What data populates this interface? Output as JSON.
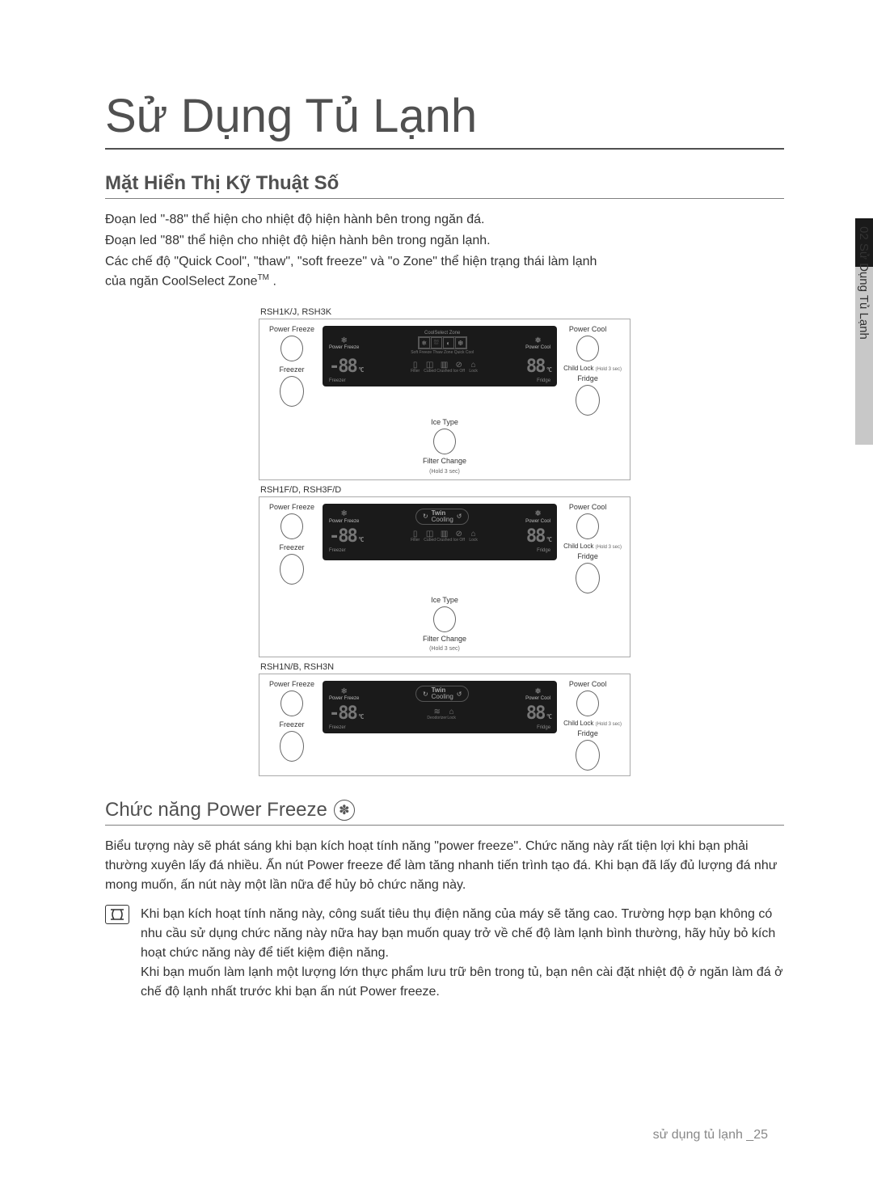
{
  "page": {
    "title": "Sử Dụng Tủ Lạnh",
    "side_tab": "02 Sử Dụng Tủ Lạnh",
    "footer": "sử dụng tủ lạnh _25"
  },
  "section1": {
    "title": "Mặt Hiển Thị Kỹ Thuật Số",
    "p1": "Đoạn led \"-88\" thể hiện cho nhiệt độ hiện hành bên trong ngăn đá.",
    "p2": "Đoạn led \"88\" thể hiện cho nhiệt độ hiện hành bên trong ngăn lạnh.",
    "p3a": "Các chế độ \"Quick Cool\", \"thaw\", \"soft freeze\" và \"o Zone\" thể hiện trạng thái làm lạnh",
    "p3b": "của ngăn CoolSelect Zone",
    "p3c": " ."
  },
  "panels": {
    "buttons": {
      "power_freeze": "Power Freeze",
      "power_cool": "Power Cool",
      "freezer": "Freezer",
      "fridge": "Fridge",
      "child_lock": "Child Lock",
      "child_lock_sub": "(Hold 3 sec)",
      "ice_type": "Ice Type",
      "filter_change": "Filter Change",
      "filter_sub": "(Hold 3 sec)"
    },
    "display": {
      "cool_select_zone": "CoolSelect Zone",
      "power_freeze": "Power Freeze",
      "power_cool": "Power Cool",
      "twin_cooling": "Twin Cooling",
      "freezer_temp": "-88",
      "fridge_temp": "88",
      "deg": "°C",
      "freezer_lbl": "Freezer",
      "fridge_lbl": "Fridge",
      "filter_lbl": "Filter",
      "cubed_lbl": "Cubed",
      "crushed_lbl": "Crushed",
      "ice_off_lbl": "Ice Off",
      "lock_lbl": "Lock",
      "deodorizer_lbl": "Deodorizer",
      "zone_icons": [
        "❄",
        "⛆",
        "◐",
        "❆"
      ],
      "zone_labels": "Soft Freeze  Thaw   Zone  Quick Cool"
    },
    "list": [
      {
        "model": "RSH1K/J, RSH3K",
        "type": "zone",
        "has_bottom": true,
        "full_icons": true
      },
      {
        "model": "RSH1F/D, RSH3F/D",
        "type": "twin",
        "has_bottom": true,
        "full_icons": true
      },
      {
        "model": "RSH1N/B, RSH3N",
        "type": "twin",
        "has_bottom": false,
        "full_icons": false
      }
    ]
  },
  "section2": {
    "title": "Chức năng Power Freeze",
    "p1": "Biểu tượng này sẽ phát sáng khi bạn kích hoạt tính năng \"power freeze\". Chức năng này rất tiện lợi khi bạn phải thường xuyên lấy đá nhiều. Ấn nút Power freeze để làm tăng nhanh tiến trình tạo đá. Khi bạn đã lấy đủ lượng đá như mong muốn, ấn nút này một lần nữa để hủy bỏ chức năng này.",
    "note1": "Khi bạn kích hoạt tính năng này, công suất tiêu thụ điện năng của máy sẽ tăng cao. Trường hợp bạn không có nhu cầu sử dụng chức năng này nữa hay bạn muốn quay trở về chế độ làm lạnh bình thường, hãy hủy bỏ kích hoạt chức năng này để tiết kiệm điện năng.",
    "note2": "Khi bạn muốn làm lạnh một lượng lớn thực phẩm lưu trữ bên trong tủ, bạn nên cài đặt nhiệt độ ở ngăn làm đá ở chế độ lạnh nhất trước khi bạn ấn nút Power freeze."
  },
  "colors": {
    "text": "#333333",
    "title": "#505050",
    "border": "#808080",
    "screen_bg": "#1a1a1a",
    "screen_fg": "#888888",
    "side_black": "#1a1a1a",
    "side_gray": "#c8c8c8"
  }
}
